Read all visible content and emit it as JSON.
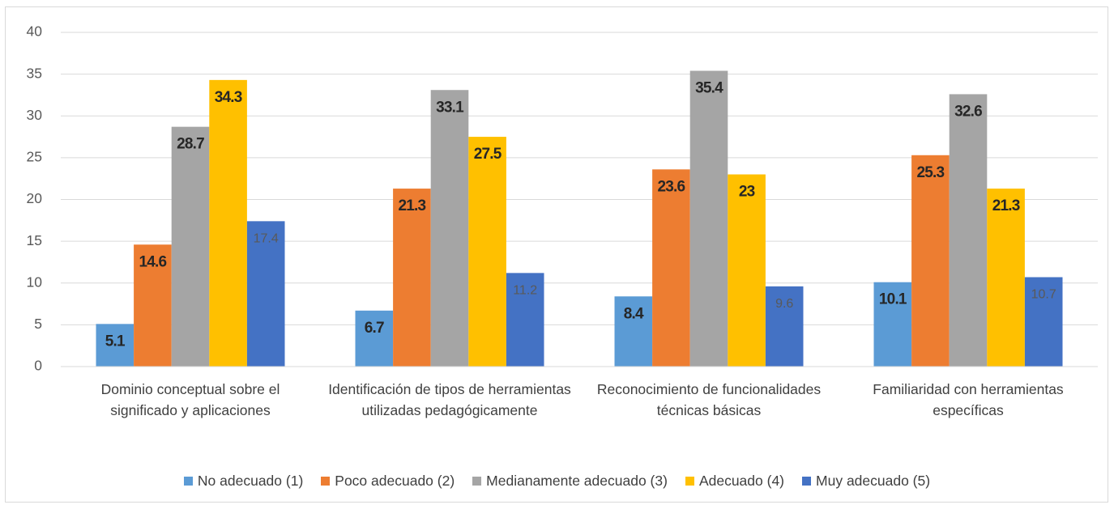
{
  "chart_data": {
    "type": "bar",
    "categories": [
      "Dominio conceptual sobre el significado y aplicaciones",
      "Identificación de tipos de herramientas utilizadas pedagógicamente",
      "Reconocimiento de funcionalidades técnicas básicas",
      "Familiaridad con herramientas específicas"
    ],
    "series": [
      {
        "name": "No adecuado (1)",
        "color": "#5b9bd5",
        "values": [
          5.1,
          6.7,
          8.4,
          10.1
        ]
      },
      {
        "name": "Poco adecuado (2)",
        "color": "#ed7d31",
        "values": [
          14.6,
          21.3,
          23.6,
          25.3
        ]
      },
      {
        "name": "Medianamente adecuado (3)",
        "color": "#a5a5a5",
        "values": [
          28.7,
          33.1,
          35.4,
          32.6
        ]
      },
      {
        "name": "Adecuado (4)",
        "color": "#ffc000",
        "values": [
          34.3,
          27.5,
          23,
          21.3
        ]
      },
      {
        "name": "Muy adecuado (5)",
        "color": "#4472c4",
        "values": [
          17.4,
          11.2,
          9.6,
          10.7
        ]
      }
    ],
    "ylim": [
      0,
      40
    ],
    "yticks": [
      0,
      5,
      10,
      15,
      20,
      25,
      30,
      35,
      40
    ],
    "grid": true,
    "legend": "bottom"
  }
}
